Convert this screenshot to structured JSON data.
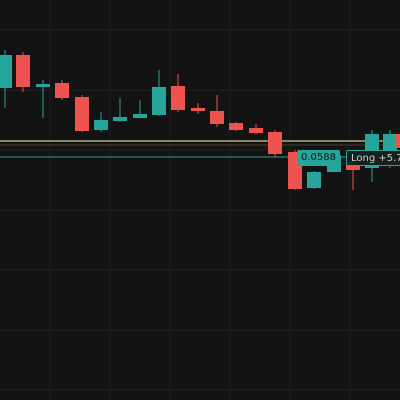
{
  "colors": {
    "background": "#131313",
    "grid": "#1f1f1f",
    "up": "#26a69a",
    "down": "#ef5350",
    "avg_line": "#c9c98a",
    "position_line": "#2f9e8f"
  },
  "overlay": {
    "price_badge": "0.0588",
    "position_label": "Long +5.7"
  },
  "chart_data": {
    "type": "candlestick",
    "candles": [
      {
        "direction": "up"
      },
      {
        "direction": "down"
      },
      {
        "direction": "up"
      },
      {
        "direction": "down"
      },
      {
        "direction": "down"
      },
      {
        "direction": "up"
      },
      {
        "direction": "up"
      },
      {
        "direction": "up"
      },
      {
        "direction": "up"
      },
      {
        "direction": "down"
      },
      {
        "direction": "down"
      },
      {
        "direction": "down"
      },
      {
        "direction": "down"
      },
      {
        "direction": "down"
      },
      {
        "direction": "down"
      },
      {
        "direction": "down"
      },
      {
        "direction": "up"
      },
      {
        "direction": "up"
      },
      {
        "direction": "down"
      },
      {
        "direction": "up"
      },
      {
        "direction": "up"
      },
      {
        "direction": "down"
      }
    ],
    "price_line_label": "0.0588",
    "position": "Long +5.7",
    "grid": true
  }
}
